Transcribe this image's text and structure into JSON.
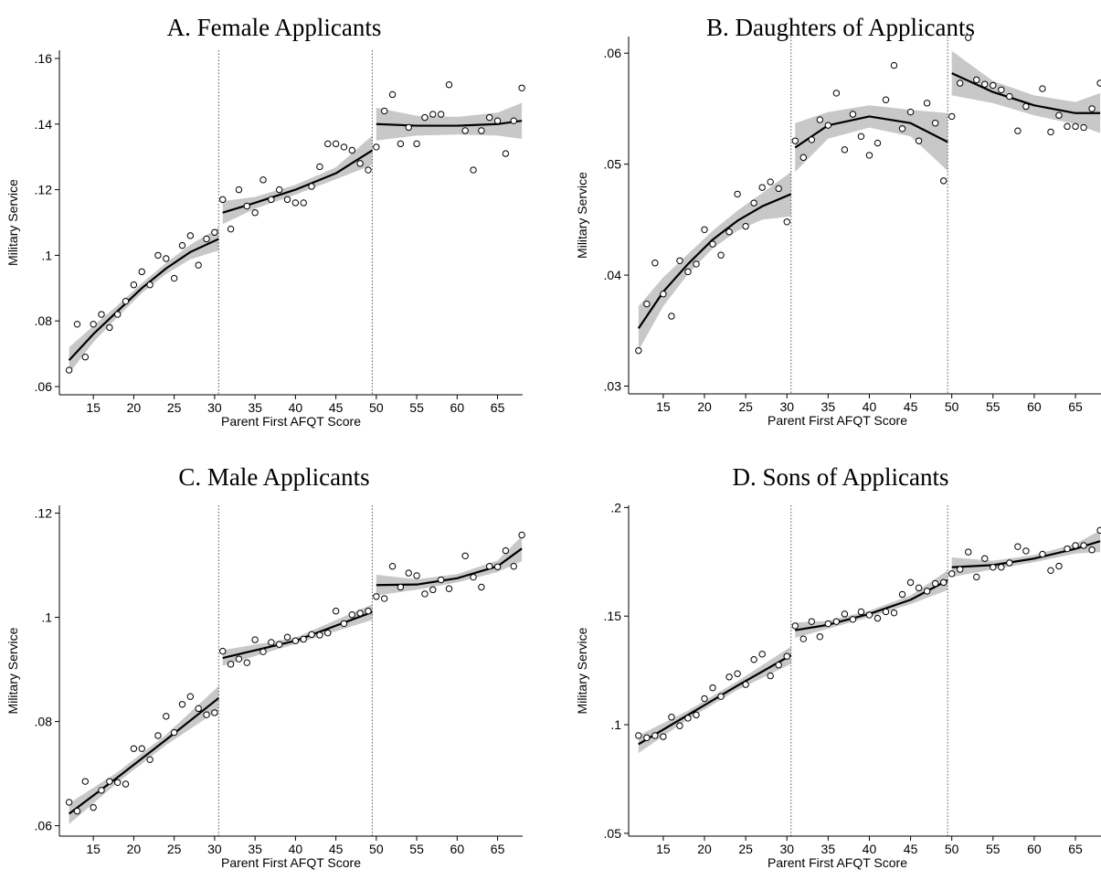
{
  "chart_data": [
    {
      "type": "scatter",
      "title": "A. Female Applicants",
      "xlabel": "Parent First AFQT Score",
      "ylabel": "Military Service",
      "xlim": [
        10.8,
        68.1
      ],
      "ylim": [
        0.0575,
        0.1625
      ],
      "xticks": [
        15,
        20,
        25,
        30,
        35,
        40,
        45,
        50,
        55,
        60,
        65
      ],
      "yticks": [
        {
          "value": 0.06,
          "label": ".06"
        },
        {
          "value": 0.08,
          "label": ".08"
        },
        {
          "value": 0.1,
          "label": ".1"
        },
        {
          "value": 0.12,
          "label": ".12"
        },
        {
          "value": 0.14,
          "label": ".14"
        },
        {
          "value": 0.16,
          "label": ".16"
        }
      ],
      "cutoffs": [
        30.5,
        49.5
      ],
      "marker_color": "#000000",
      "band_color": "#c8c8c8",
      "x": [
        12,
        13,
        14,
        15,
        16,
        17,
        18,
        19,
        20,
        21,
        22,
        23,
        24,
        25,
        26,
        27,
        28,
        29,
        30,
        31,
        32,
        33,
        34,
        35,
        36,
        37,
        38,
        39,
        40,
        41,
        42,
        43,
        44,
        45,
        46,
        47,
        48,
        49,
        50,
        51,
        52,
        53,
        54,
        55,
        56,
        57,
        58,
        59,
        61,
        62,
        63,
        64,
        65,
        66,
        67,
        68
      ],
      "values": [
        0.065,
        0.079,
        0.069,
        0.079,
        0.082,
        0.078,
        0.082,
        0.086,
        0.091,
        0.095,
        0.091,
        0.1,
        0.099,
        0.093,
        0.103,
        0.106,
        0.097,
        0.105,
        0.107,
        0.117,
        0.108,
        0.12,
        0.115,
        0.113,
        0.123,
        0.117,
        0.12,
        0.117,
        0.116,
        0.116,
        0.121,
        0.127,
        0.134,
        0.134,
        0.133,
        0.132,
        0.128,
        0.126,
        0.133,
        0.144,
        0.149,
        0.134,
        0.139,
        0.134,
        0.142,
        0.143,
        0.143,
        0.152,
        0.138,
        0.126,
        0.138,
        0.142,
        0.141,
        0.131,
        0.141,
        0.151
      ],
      "fits": [
        {
          "x": [
            12,
            15,
            18,
            21,
            24,
            27,
            30.5
          ],
          "values": [
            0.068,
            0.076,
            0.083,
            0.09,
            0.096,
            0.101,
            0.105
          ],
          "lower": [
            0.064,
            0.0735,
            0.0812,
            0.0885,
            0.0943,
            0.0988,
            0.1015
          ],
          "upper": [
            0.072,
            0.0785,
            0.0848,
            0.0915,
            0.0977,
            0.1032,
            0.1085
          ]
        },
        {
          "x": [
            31,
            35,
            40,
            45,
            49.5
          ],
          "values": [
            0.113,
            0.116,
            0.12,
            0.125,
            0.132
          ],
          "lower": [
            0.1095,
            0.1142,
            0.1185,
            0.1232,
            0.1275
          ],
          "upper": [
            0.1165,
            0.1178,
            0.1215,
            0.1268,
            0.1365
          ]
        },
        {
          "x": [
            50,
            55,
            60,
            65,
            68
          ],
          "values": [
            0.14,
            0.1395,
            0.1395,
            0.14,
            0.141
          ],
          "lower": [
            0.135,
            0.1365,
            0.1368,
            0.1365,
            0.1355
          ],
          "upper": [
            0.145,
            0.1425,
            0.1422,
            0.1435,
            0.1465
          ]
        }
      ]
    },
    {
      "type": "scatter",
      "title": "B. Daughters of Applicants",
      "xlabel": "Parent First AFQT Score",
      "ylabel": "Military Service",
      "xlim": [
        10.8,
        68.1
      ],
      "ylim": [
        0.0293,
        0.0615
      ],
      "xticks": [
        15,
        20,
        25,
        30,
        35,
        40,
        45,
        50,
        55,
        60,
        65
      ],
      "yticks": [
        {
          "value": 0.03,
          "label": ".03"
        },
        {
          "value": 0.04,
          "label": ".04"
        },
        {
          "value": 0.05,
          "label": ".05"
        },
        {
          "value": 0.06,
          "label": ".06"
        }
      ],
      "cutoffs": [
        30.5,
        49.5
      ],
      "marker_color": "#000000",
      "band_color": "#c8c8c8",
      "x": [
        12,
        13,
        14,
        15,
        16,
        17,
        18,
        19,
        20,
        21,
        22,
        23,
        24,
        25,
        26,
        27,
        28,
        29,
        30,
        31,
        32,
        33,
        34,
        35,
        36,
        37,
        38,
        39,
        40,
        41,
        42,
        43,
        44,
        45,
        46,
        47,
        48,
        49,
        50,
        51,
        52,
        53,
        54,
        55,
        56,
        57,
        58,
        59,
        61,
        62,
        63,
        64,
        65,
        66,
        67,
        68
      ],
      "values": [
        0.0332,
        0.0374,
        0.0411,
        0.0383,
        0.0363,
        0.0413,
        0.0403,
        0.041,
        0.0441,
        0.0428,
        0.0418,
        0.0439,
        0.0473,
        0.0444,
        0.0465,
        0.0479,
        0.0484,
        0.0478,
        0.0448,
        0.0521,
        0.0506,
        0.0522,
        0.054,
        0.0535,
        0.0564,
        0.0513,
        0.0545,
        0.0525,
        0.0508,
        0.0519,
        0.0558,
        0.0589,
        0.0532,
        0.0547,
        0.0521,
        0.0555,
        0.0537,
        0.0485,
        0.0543,
        0.0573,
        0.0614,
        0.0576,
        0.0572,
        0.0571,
        0.0567,
        0.0561,
        0.053,
        0.0552,
        0.0568,
        0.0529,
        0.0544,
        0.0534,
        0.0534,
        0.0533,
        0.055,
        0.0573
      ],
      "fits": [
        {
          "x": [
            12,
            15,
            18,
            21,
            24,
            27,
            30.5
          ],
          "values": [
            0.0352,
            0.0385,
            0.041,
            0.0432,
            0.0449,
            0.0462,
            0.0473
          ],
          "lower": [
            0.0332,
            0.0372,
            0.0401,
            0.0424,
            0.044,
            0.045,
            0.0453
          ],
          "upper": [
            0.0372,
            0.0398,
            0.0419,
            0.044,
            0.0458,
            0.0474,
            0.0493
          ]
        },
        {
          "x": [
            31,
            35,
            40,
            45,
            49.5
          ],
          "values": [
            0.0515,
            0.0535,
            0.0543,
            0.0537,
            0.052
          ],
          "lower": [
            0.0493,
            0.0523,
            0.0533,
            0.0525,
            0.0494
          ],
          "upper": [
            0.0537,
            0.0547,
            0.0553,
            0.0549,
            0.0546
          ]
        },
        {
          "x": [
            50,
            55,
            60,
            65,
            68
          ],
          "values": [
            0.0582,
            0.0565,
            0.0553,
            0.0546,
            0.0546
          ],
          "lower": [
            0.0562,
            0.0555,
            0.0544,
            0.0536,
            0.0528
          ],
          "upper": [
            0.0602,
            0.0575,
            0.0562,
            0.0556,
            0.0564
          ]
        }
      ]
    },
    {
      "type": "scatter",
      "title": "C. Male Applicants",
      "xlabel": "Parent First AFQT Score",
      "ylabel": "Military Service",
      "xlim": [
        10.8,
        68.1
      ],
      "ylim": [
        0.058,
        0.1215
      ],
      "xticks": [
        15,
        20,
        25,
        30,
        35,
        40,
        45,
        50,
        55,
        60,
        65
      ],
      "yticks": [
        {
          "value": 0.06,
          "label": ".06"
        },
        {
          "value": 0.08,
          "label": ".08"
        },
        {
          "value": 0.1,
          "label": ".1"
        },
        {
          "value": 0.12,
          "label": ".12"
        }
      ],
      "cutoffs": [
        30.5,
        49.5
      ],
      "marker_color": "#000000",
      "band_color": "#c8c8c8",
      "x": [
        12,
        13,
        14,
        15,
        16,
        17,
        18,
        19,
        20,
        21,
        22,
        23,
        24,
        25,
        26,
        27,
        28,
        29,
        30,
        31,
        32,
        33,
        34,
        35,
        36,
        37,
        38,
        39,
        40,
        41,
        42,
        43,
        44,
        45,
        46,
        47,
        48,
        49,
        50,
        51,
        52,
        53,
        54,
        55,
        56,
        57,
        58,
        59,
        61,
        62,
        63,
        64,
        65,
        66,
        67,
        68
      ],
      "values": [
        0.0645,
        0.0628,
        0.0685,
        0.0635,
        0.0668,
        0.0685,
        0.0683,
        0.068,
        0.0748,
        0.0748,
        0.0727,
        0.0773,
        0.081,
        0.0779,
        0.0833,
        0.0848,
        0.0825,
        0.0813,
        0.0817,
        0.0935,
        0.091,
        0.092,
        0.0913,
        0.0957,
        0.0934,
        0.0952,
        0.0948,
        0.0962,
        0.0955,
        0.0958,
        0.0967,
        0.0966,
        0.097,
        0.1012,
        0.0988,
        0.1005,
        0.1008,
        0.1012,
        0.104,
        0.1036,
        0.1098,
        0.1058,
        0.1085,
        0.108,
        0.1045,
        0.1053,
        0.1072,
        0.1055,
        0.1118,
        0.1077,
        0.1058,
        0.1098,
        0.1097,
        0.1128,
        0.1098,
        0.1158
      ],
      "fits": [
        {
          "x": [
            12,
            18,
            24,
            30.5
          ],
          "values": [
            0.0623,
            0.0693,
            0.0765,
            0.0845
          ],
          "lower": [
            0.0603,
            0.0683,
            0.0755,
            0.0822
          ],
          "upper": [
            0.0643,
            0.0703,
            0.0775,
            0.0868
          ]
        },
        {
          "x": [
            31,
            40,
            49.5
          ],
          "values": [
            0.0922,
            0.0955,
            0.101
          ],
          "lower": [
            0.0907,
            0.0949,
            0.0995
          ],
          "upper": [
            0.0937,
            0.0961,
            0.1025
          ]
        },
        {
          "x": [
            50,
            55,
            60,
            65,
            68
          ],
          "values": [
            0.1062,
            0.1063,
            0.1075,
            0.1098,
            0.1132
          ],
          "lower": [
            0.1042,
            0.1053,
            0.1067,
            0.1087,
            0.1108
          ],
          "upper": [
            0.1082,
            0.1073,
            0.1083,
            0.1109,
            0.1156
          ]
        }
      ]
    },
    {
      "type": "scatter",
      "title": "D. Sons of Applicants",
      "xlabel": "Parent First AFQT Score",
      "ylabel": "Military Service",
      "xlim": [
        10.8,
        68.1
      ],
      "ylim": [
        0.0487,
        0.201
      ],
      "xticks": [
        15,
        20,
        25,
        30,
        35,
        40,
        45,
        50,
        55,
        60,
        65
      ],
      "yticks": [
        {
          "value": 0.05,
          "label": ".05"
        },
        {
          "value": 0.1,
          "label": ".1"
        },
        {
          "value": 0.15,
          "label": ".15"
        },
        {
          "value": 0.2,
          "label": ".2"
        }
      ],
      "cutoffs": [
        30.5,
        49.5
      ],
      "marker_color": "#000000",
      "band_color": "#c8c8c8",
      "x": [
        12,
        13,
        14,
        15,
        16,
        17,
        18,
        19,
        20,
        21,
        22,
        23,
        24,
        25,
        26,
        27,
        28,
        29,
        30,
        31,
        32,
        33,
        34,
        35,
        36,
        37,
        38,
        39,
        40,
        41,
        42,
        43,
        44,
        45,
        46,
        47,
        48,
        49,
        50,
        51,
        52,
        53,
        54,
        55,
        56,
        57,
        58,
        59,
        61,
        62,
        63,
        64,
        65,
        66,
        67,
        68
      ],
      "values": [
        0.095,
        0.094,
        0.095,
        0.0945,
        0.1035,
        0.0995,
        0.103,
        0.1045,
        0.112,
        0.117,
        0.113,
        0.122,
        0.1235,
        0.1185,
        0.13,
        0.1325,
        0.1225,
        0.1275,
        0.1315,
        0.1455,
        0.1395,
        0.1475,
        0.1405,
        0.1465,
        0.1475,
        0.151,
        0.1485,
        0.152,
        0.1505,
        0.149,
        0.152,
        0.1515,
        0.16,
        0.1655,
        0.163,
        0.1615,
        0.165,
        0.1655,
        0.1695,
        0.1715,
        0.1795,
        0.168,
        0.1765,
        0.1725,
        0.1725,
        0.1745,
        0.182,
        0.18,
        0.1785,
        0.171,
        0.173,
        0.181,
        0.1825,
        0.1825,
        0.1805,
        0.1895
      ],
      "fits": [
        {
          "x": [
            12,
            18,
            24,
            30.5
          ],
          "values": [
            0.091,
            0.1045,
            0.118,
            0.132
          ],
          "lower": [
            0.087,
            0.1025,
            0.116,
            0.128
          ],
          "upper": [
            0.095,
            0.1065,
            0.12,
            0.136
          ]
        },
        {
          "x": [
            31,
            35,
            40,
            45,
            49.5
          ],
          "values": [
            0.1435,
            0.146,
            0.151,
            0.1575,
            0.1665
          ],
          "lower": [
            0.14,
            0.1442,
            0.1495,
            0.1555,
            0.162
          ],
          "upper": [
            0.147,
            0.1478,
            0.1525,
            0.1595,
            0.171
          ]
        },
        {
          "x": [
            50,
            55,
            60,
            65,
            68
          ],
          "values": [
            0.1725,
            0.1735,
            0.1765,
            0.181,
            0.1845
          ],
          "lower": [
            0.168,
            0.1715,
            0.1748,
            0.1788,
            0.1795
          ],
          "upper": [
            0.177,
            0.1755,
            0.1782,
            0.1832,
            0.1895
          ]
        }
      ]
    }
  ]
}
